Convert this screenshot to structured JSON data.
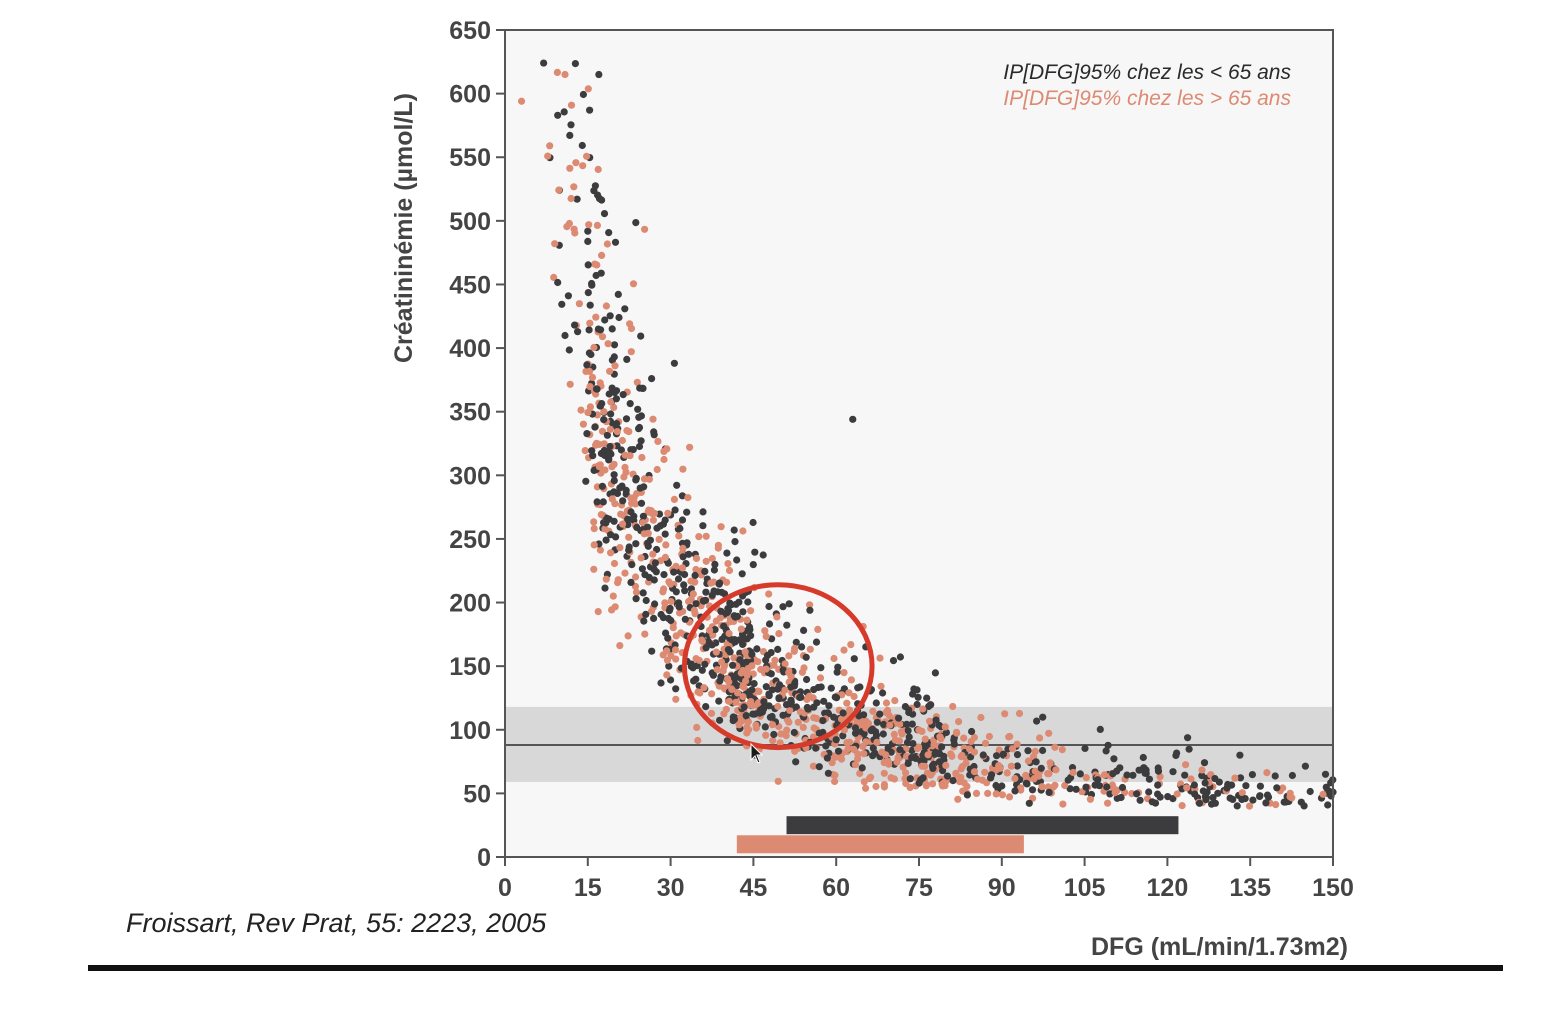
{
  "citation": "Froissart, Rev Prat, 55: 2223, 2005",
  "chart_data": {
    "type": "scatter",
    "xlabel": "DFG (mL/min/1.73m2)",
    "ylabel": "Créatininémie (µmol/L)",
    "xlim": [
      0,
      150
    ],
    "ylim": [
      0,
      650
    ],
    "xticks": [
      "0",
      "15",
      "30",
      "45",
      "60",
      "75",
      "90",
      "105",
      "120",
      "135",
      "150"
    ],
    "yticks": [
      "0",
      "50",
      "100",
      "150",
      "200",
      "250",
      "300",
      "350",
      "400",
      "450",
      "500",
      "550",
      "600",
      "650"
    ],
    "grid": false,
    "legend_position": "top-right",
    "colors": {
      "under65": "#3c3c3e",
      "over65": "#dc8a72",
      "reference_band": "#d8d8d8",
      "reference_line": "#555555",
      "highlight_circle": "#d63a2b",
      "plot_background": "#f8f7f7"
    },
    "series": [
      {
        "name": "IP[DFG]95% chez les < 65 ans",
        "color": "#3c3c3e"
      },
      {
        "name": "IP[DFG]95% chez les > 65 ans",
        "color": "#dc8a72"
      }
    ],
    "reference_band": {
      "y_low": 59,
      "y_high": 118
    },
    "reference_line": {
      "y": 88
    },
    "interval_bars": [
      {
        "series": "IP[DFG]95% chez les < 65 ans",
        "x_start": 51,
        "x_end": 122,
        "y": 25
      },
      {
        "series": "IP[DFG]95% chez les > 65 ans",
        "x_start": 42,
        "x_end": 94,
        "y": 10
      }
    ],
    "highlight_circle": {
      "cx": 49.5,
      "cy": 150,
      "rx": 17,
      "ry": 64
    },
    "scatter_model": {
      "description_of_points": "about 1700 patients, creatinine roughly inversely proportional to DFG",
      "relation": "creatinine ≈ 6500 / DFG",
      "x_range": [
        5,
        150
      ],
      "y_range": [
        40,
        625
      ]
    },
    "notable_points": [
      {
        "series": "IP[DFG]95% chez les < 65 ans",
        "x": 7,
        "y": 624
      },
      {
        "series": "IP[DFG]95% chez les < 65 ans",
        "x": 17,
        "y": 615
      },
      {
        "series": "IP[DFG]95% chez les < 65 ans",
        "x": 63,
        "y": 344
      },
      {
        "series": "IP[DFG]95% chez les > 65 ans",
        "x": 3,
        "y": 594
      },
      {
        "series": "IP[DFG]95% chez les < 65 ans",
        "x": 150,
        "y": 51
      }
    ]
  }
}
